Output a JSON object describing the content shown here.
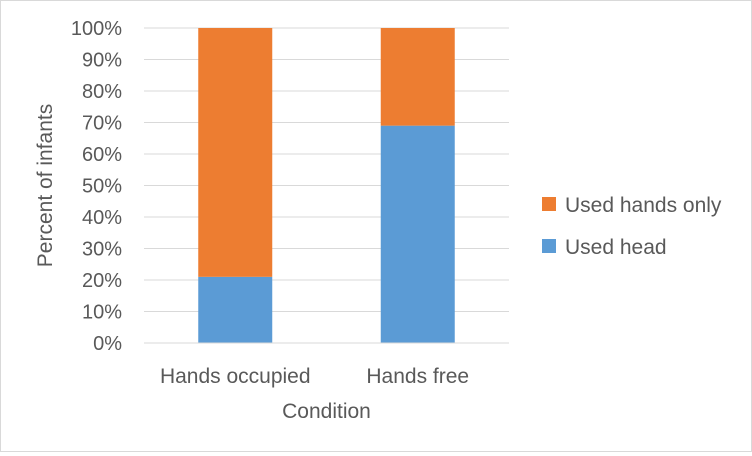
{
  "chart_data": {
    "type": "bar",
    "stacked": true,
    "normalized": true,
    "categories": [
      "Hands occupied",
      "Hands free"
    ],
    "series": [
      {
        "name": "Used head",
        "values": [
          21,
          69
        ],
        "color": "#5B9BD5"
      },
      {
        "name": "Used hands only",
        "values": [
          79,
          31
        ],
        "color": "#ED7D31"
      }
    ],
    "xlabel": "Condition",
    "ylabel": "Percent of infants",
    "ylim": [
      0,
      100
    ],
    "yticks": [
      "0%",
      "10%",
      "20%",
      "30%",
      "40%",
      "50%",
      "60%",
      "70%",
      "80%",
      "90%",
      "100%"
    ],
    "grid": true,
    "legend_position": "right",
    "legend_order": [
      "Used hands only",
      "Used head"
    ]
  }
}
